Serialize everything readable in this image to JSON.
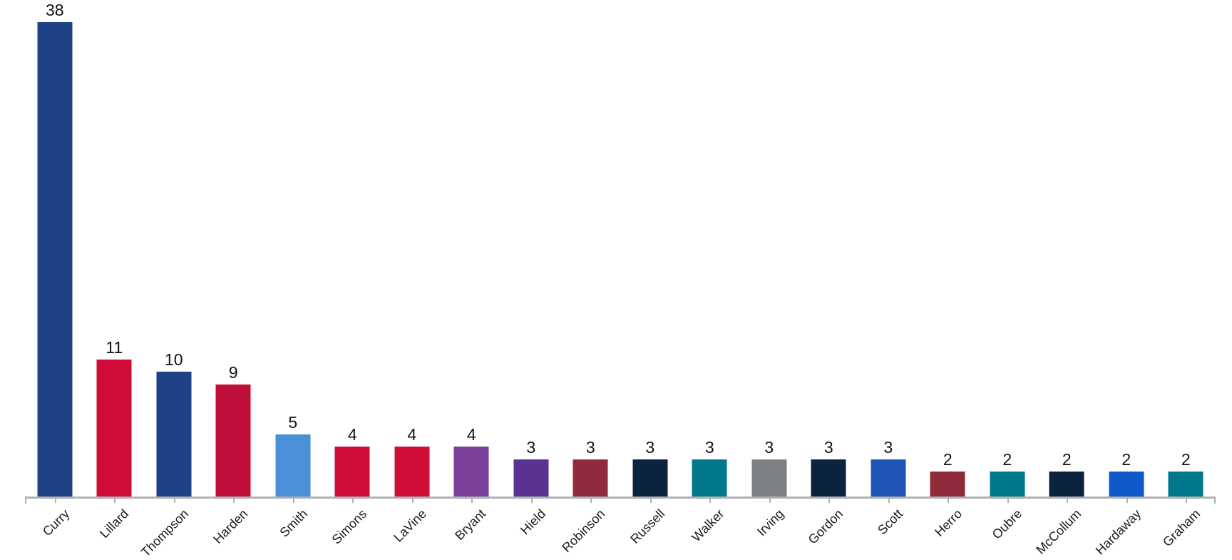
{
  "chart_data": {
    "type": "bar",
    "title": "",
    "xlabel": "",
    "ylabel": "",
    "categories": [
      "Curry",
      "Lillard",
      "Thompson",
      "Harden",
      "Smith",
      "Simons",
      "LaVine",
      "Bryant",
      "Hield",
      "Robinson",
      "Russell",
      "Walker",
      "Irving",
      "Gordon",
      "Scott",
      "Herro",
      "Oubre",
      "McCollum",
      "Hardaway",
      "Graham"
    ],
    "values": [
      38,
      11,
      10,
      9,
      5,
      4,
      4,
      4,
      3,
      3,
      3,
      3,
      3,
      3,
      3,
      2,
      2,
      2,
      2,
      2
    ],
    "bar_colors": [
      "#1f4287",
      "#d00d38",
      "#1f4287",
      "#bd0f38",
      "#4a90d7",
      "#d00d38",
      "#d00d38",
      "#7c3f9a",
      "#5a3392",
      "#8f2b3b",
      "#0c2340",
      "#00788c",
      "#7d8084",
      "#0c2340",
      "#1e55b7",
      "#8f2b3b",
      "#00788c",
      "#0c2340",
      "#0e59c9",
      "#00788c"
    ],
    "ylim": [
      0,
      40
    ],
    "grid": false,
    "legend": false,
    "value_labels_shown": true,
    "tick_label_rotation_deg": -45,
    "axis_color": "#aeb1b5",
    "value_label_color": "#111111",
    "category_label_color": "#1a1a1a",
    "background_color": "#ffffff"
  }
}
